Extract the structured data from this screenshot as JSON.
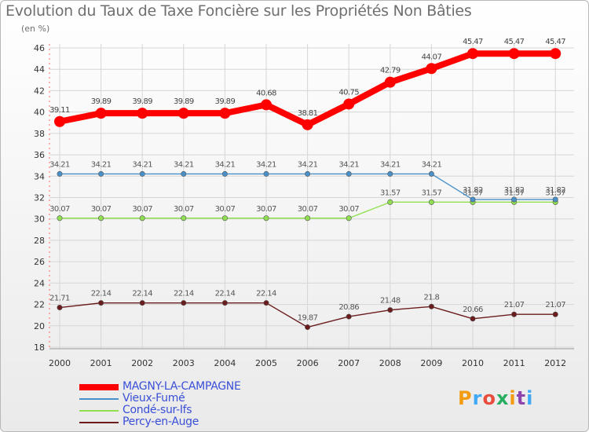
{
  "title": "Evolution du Taux de Taxe Foncière sur les Propriétés Non Bâties",
  "unit": "(en %)",
  "logo": "Proxiti",
  "chart_data": {
    "type": "line",
    "title": "Evolution du Taux de Taxe Foncière sur les Propriétés Non Bâties",
    "ylabel": "(en %)",
    "xlabel": "",
    "ylim": [
      18,
      46
    ],
    "yticks": [
      18,
      20,
      22,
      24,
      26,
      28,
      30,
      32,
      34,
      36,
      38,
      40,
      42,
      44,
      46
    ],
    "categories": [
      "2000",
      "2001",
      "2002",
      "2003",
      "2004",
      "2005",
      "2006",
      "2007",
      "2008",
      "2009",
      "2010",
      "2011",
      "2012"
    ],
    "legend_position": "bottom-left",
    "series": [
      {
        "name": "MAGNY-LA-CAMPAGNE",
        "color": "#ff0000",
        "values": [
          39.11,
          39.89,
          39.89,
          39.89,
          39.89,
          40.68,
          38.81,
          40.75,
          42.79,
          44.07,
          45.47,
          45.47,
          45.47
        ],
        "labels": [
          "39.11",
          "39.89",
          "39.89",
          "39.89",
          "39.89",
          "40.68",
          "38.81",
          "40.75",
          "42.79",
          "44.07",
          "45.47",
          "45.47",
          "45.47"
        ]
      },
      {
        "name": "Vieux-Fumé",
        "color": "#4a90c8",
        "values": [
          34.21,
          34.21,
          34.21,
          34.21,
          34.21,
          34.21,
          34.21,
          34.21,
          34.21,
          34.21,
          31.82,
          31.82,
          31.82
        ],
        "labels": [
          "34.21",
          "34.21",
          "34.21",
          "34.21",
          "34.21",
          "34.21",
          "34.21",
          "34.21",
          "34.21",
          "34.21",
          "31.82",
          "31.82",
          "31.82"
        ]
      },
      {
        "name": "Condé-sur-Ifs",
        "color": "#90e050",
        "values": [
          30.07,
          30.07,
          30.07,
          30.07,
          30.07,
          30.07,
          30.07,
          30.07,
          31.57,
          31.57,
          31.57,
          31.57,
          31.57
        ],
        "labels": [
          "30.07",
          "30.07",
          "30.07",
          "30.07",
          "30.07",
          "30.07",
          "30.07",
          "30.07",
          "31.57",
          "31.57",
          "31.57",
          "31.57",
          "31.57"
        ]
      },
      {
        "name": "Percy-en-Auge",
        "color": "#6b1c1c",
        "values": [
          21.71,
          22.14,
          22.14,
          22.14,
          22.14,
          22.14,
          19.87,
          20.86,
          21.48,
          21.8,
          20.66,
          21.07,
          21.07
        ],
        "labels": [
          "21.71",
          "22.14",
          "22.14",
          "22.14",
          "22.14",
          "22.14",
          "19.87",
          "20.86",
          "21.48",
          "21.8",
          "20.66",
          "21.07",
          "21.07"
        ]
      }
    ]
  }
}
